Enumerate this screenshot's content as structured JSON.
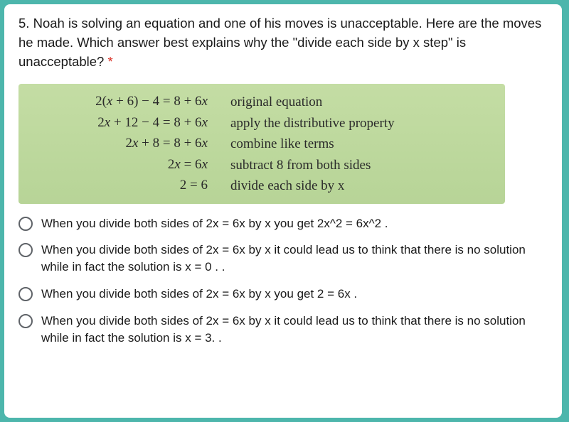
{
  "card": {
    "background": "#ffffff",
    "border_radius": 8
  },
  "outer_background": "#4db6ac",
  "question": {
    "number": "5.",
    "text": "Noah is solving an equation and one of his moves is unacceptable. Here are the moves he made. Which answer best explains why the \"divide each side by x step\" is unacceptable?",
    "required_marker": "*",
    "fontsize": 18.5,
    "color": "#1a1a1a"
  },
  "workbox": {
    "background_top": "#c4dda4",
    "background_bottom": "#b7d497",
    "equation_font": "Cambria Math / serif",
    "equation_fontsize": 19,
    "explanation_font": "Georgia / serif",
    "rows": [
      {
        "eq": "2(x + 6) − 4 = 8 + 6x",
        "explain": "original equation"
      },
      {
        "eq": "2x + 12 − 4 = 8 + 6x",
        "explain": "apply the distributive property"
      },
      {
        "eq": "2x + 8 = 8 + 6x",
        "explain": "combine like terms"
      },
      {
        "eq": "2x = 6x",
        "explain": "subtract 8 from both sides"
      },
      {
        "eq": "2 = 6",
        "explain": "divide each side by x"
      }
    ]
  },
  "options": {
    "radio_border_color": "#5f6368",
    "fontsize": 17,
    "items": [
      "When you divide both sides of 2x = 6x by x you get 2x^2 = 6x^2 .",
      "When you divide both sides of 2x = 6x by x it could lead us to think that there is no solution while in fact the solution is x = 0 . .",
      "When you divide both sides of 2x = 6x by x you get 2 = 6x .",
      "When you divide both sides of 2x = 6x by x it could lead us to think that there is no solution while in fact the solution is x = 3. ."
    ]
  }
}
